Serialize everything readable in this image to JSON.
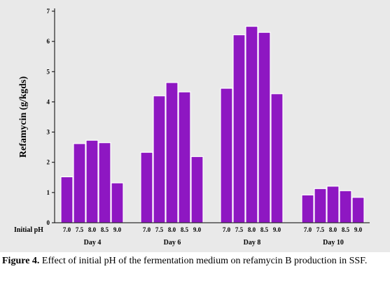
{
  "chart_data": {
    "type": "bar",
    "ylabel": "Refamycin (g/kgds)",
    "x_row_title": "Initial pH",
    "ylim": [
      0,
      7
    ],
    "yticks": [
      0,
      1,
      2,
      3,
      4,
      5,
      6,
      7
    ],
    "grid": false,
    "bar_color": "#8e17c2",
    "groups": [
      {
        "label": "Day 4",
        "categories": [
          "7.0",
          "7.5",
          "8.0",
          "8.5",
          "9.0"
        ],
        "values": [
          1.52,
          2.62,
          2.73,
          2.65,
          1.32
        ]
      },
      {
        "label": "Day 6",
        "categories": [
          "7.0",
          "7.5",
          "8.0",
          "8.5",
          "9.0"
        ],
        "values": [
          2.33,
          4.2,
          4.64,
          4.33,
          2.19
        ]
      },
      {
        "label": "Day 8",
        "categories": [
          "7.0",
          "7.5",
          "8.0",
          "8.5",
          "9.0"
        ],
        "values": [
          4.45,
          6.22,
          6.5,
          6.3,
          4.27
        ]
      },
      {
        "label": "Day 10",
        "categories": [
          "7.0",
          "7.5",
          "8.0",
          "8.5",
          "9.0"
        ],
        "values": [
          0.92,
          1.13,
          1.21,
          1.06,
          0.84
        ]
      }
    ]
  },
  "caption": {
    "label": "Figure 4.",
    "text": " Effect of initial pH of the fermentation medium on refamycin B production in SSF."
  }
}
